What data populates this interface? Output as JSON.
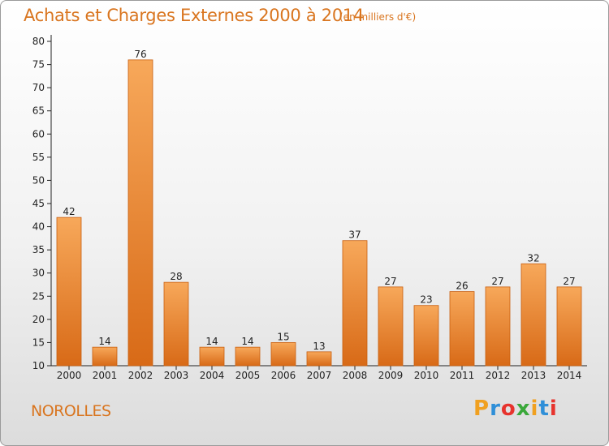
{
  "header": {
    "title": "Achats et Charges Externes 2000 à 2014",
    "subtitle": "(en milliers d'€)"
  },
  "footer": {
    "town": "NOROLLES",
    "logo_letters": [
      {
        "ch": "P",
        "color": "#f0a020"
      },
      {
        "ch": "r",
        "color": "#2f8fd8"
      },
      {
        "ch": "o",
        "color": "#e7332d"
      },
      {
        "ch": "x",
        "color": "#3aa83a"
      },
      {
        "ch": "i",
        "color": "#f0a020"
      },
      {
        "ch": "t",
        "color": "#2f8fd8"
      },
      {
        "ch": "i",
        "color": "#e7332d"
      }
    ]
  },
  "chart_data": {
    "type": "bar",
    "categories": [
      "2000",
      "2001",
      "2002",
      "2003",
      "2004",
      "2005",
      "2006",
      "2007",
      "2008",
      "2009",
      "2010",
      "2011",
      "2012",
      "2013",
      "2014"
    ],
    "values": [
      42,
      14,
      76,
      28,
      14,
      14,
      15,
      13,
      37,
      27,
      23,
      26,
      27,
      32,
      27
    ],
    "ylim": [
      10,
      80
    ],
    "yticks": [
      10,
      15,
      20,
      25,
      30,
      35,
      40,
      45,
      50,
      55,
      60,
      65,
      70,
      75,
      80
    ],
    "grid": false,
    "legend": "none",
    "bar_color_top": "#f7a85a",
    "bar_color_bottom": "#d86a17",
    "bar_edge": "#c85f10"
  }
}
